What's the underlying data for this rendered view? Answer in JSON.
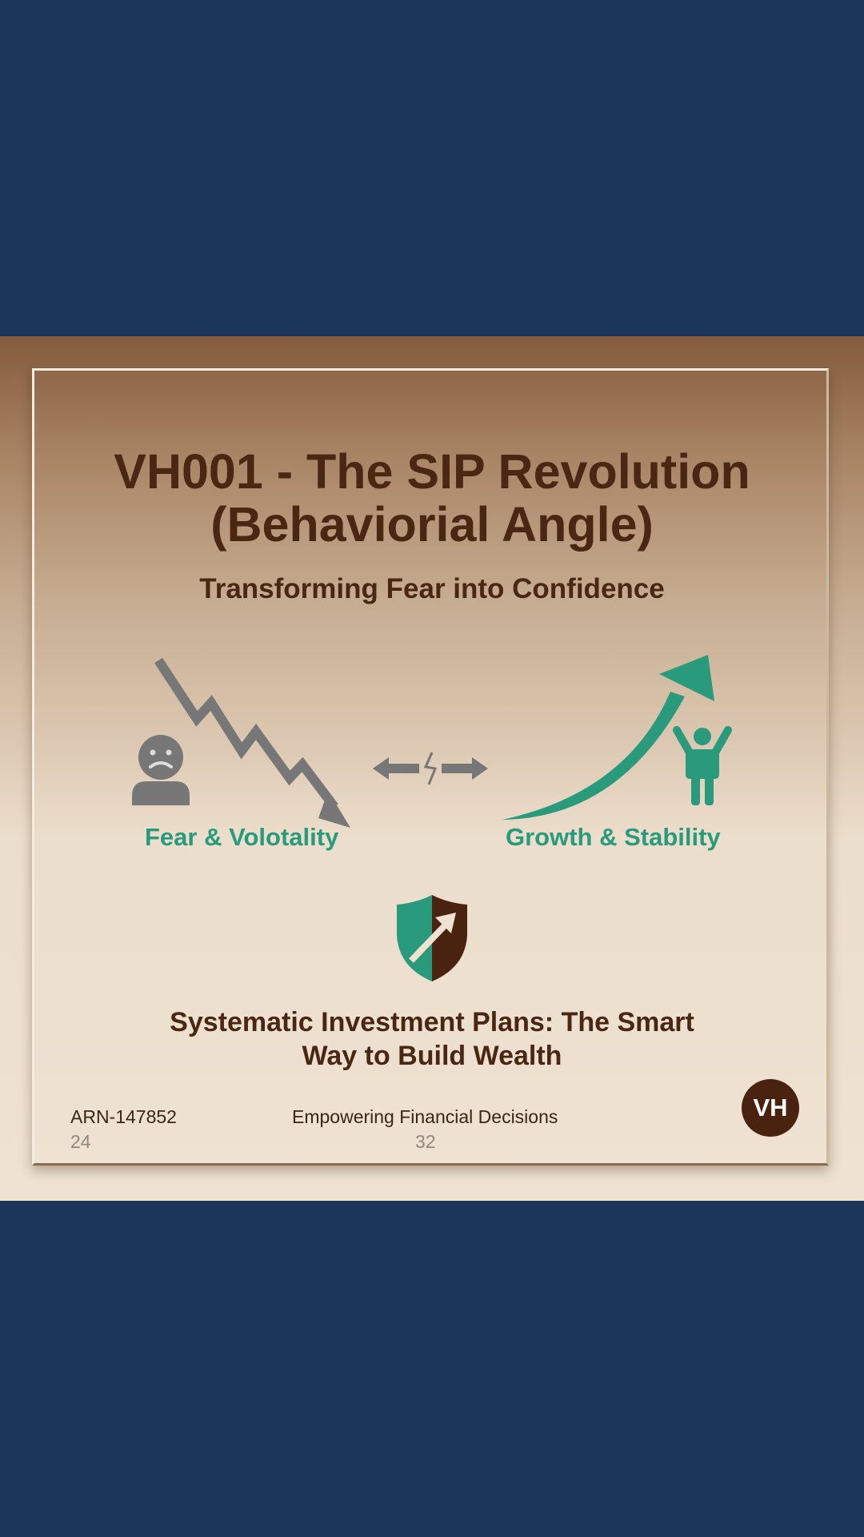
{
  "banner": {
    "title_line1": "VH001 - The SIP Revolution",
    "title_line2": "(Behaviorial Angle)",
    "subtitle": "Transforming Fear into Confidence",
    "fear_label": "Fear & Volotality",
    "growth_label": "Growth & Stability",
    "description_line1": "Systematic Investment Plans: The Smart",
    "description_line2": "Way to Build Wealth",
    "footer": {
      "arn": "ARN-147852",
      "tagline": "Empowering Financial Decisions",
      "number_left": "24",
      "number_center": "32"
    },
    "logo_initials": "VH",
    "icons": [
      "sad-person-icon",
      "down-trend-arrow-icon",
      "exchange-arrows-icon",
      "up-trend-arrow-icon",
      "happy-person-icon",
      "shield-growth-icon"
    ],
    "colors": {
      "page_background": "#1b355b",
      "title_brown": "#4a2713",
      "accent_green": "#2a9a7c",
      "icon_gray": "#7a7a7a",
      "logo_brown": "#4a2310"
    }
  }
}
